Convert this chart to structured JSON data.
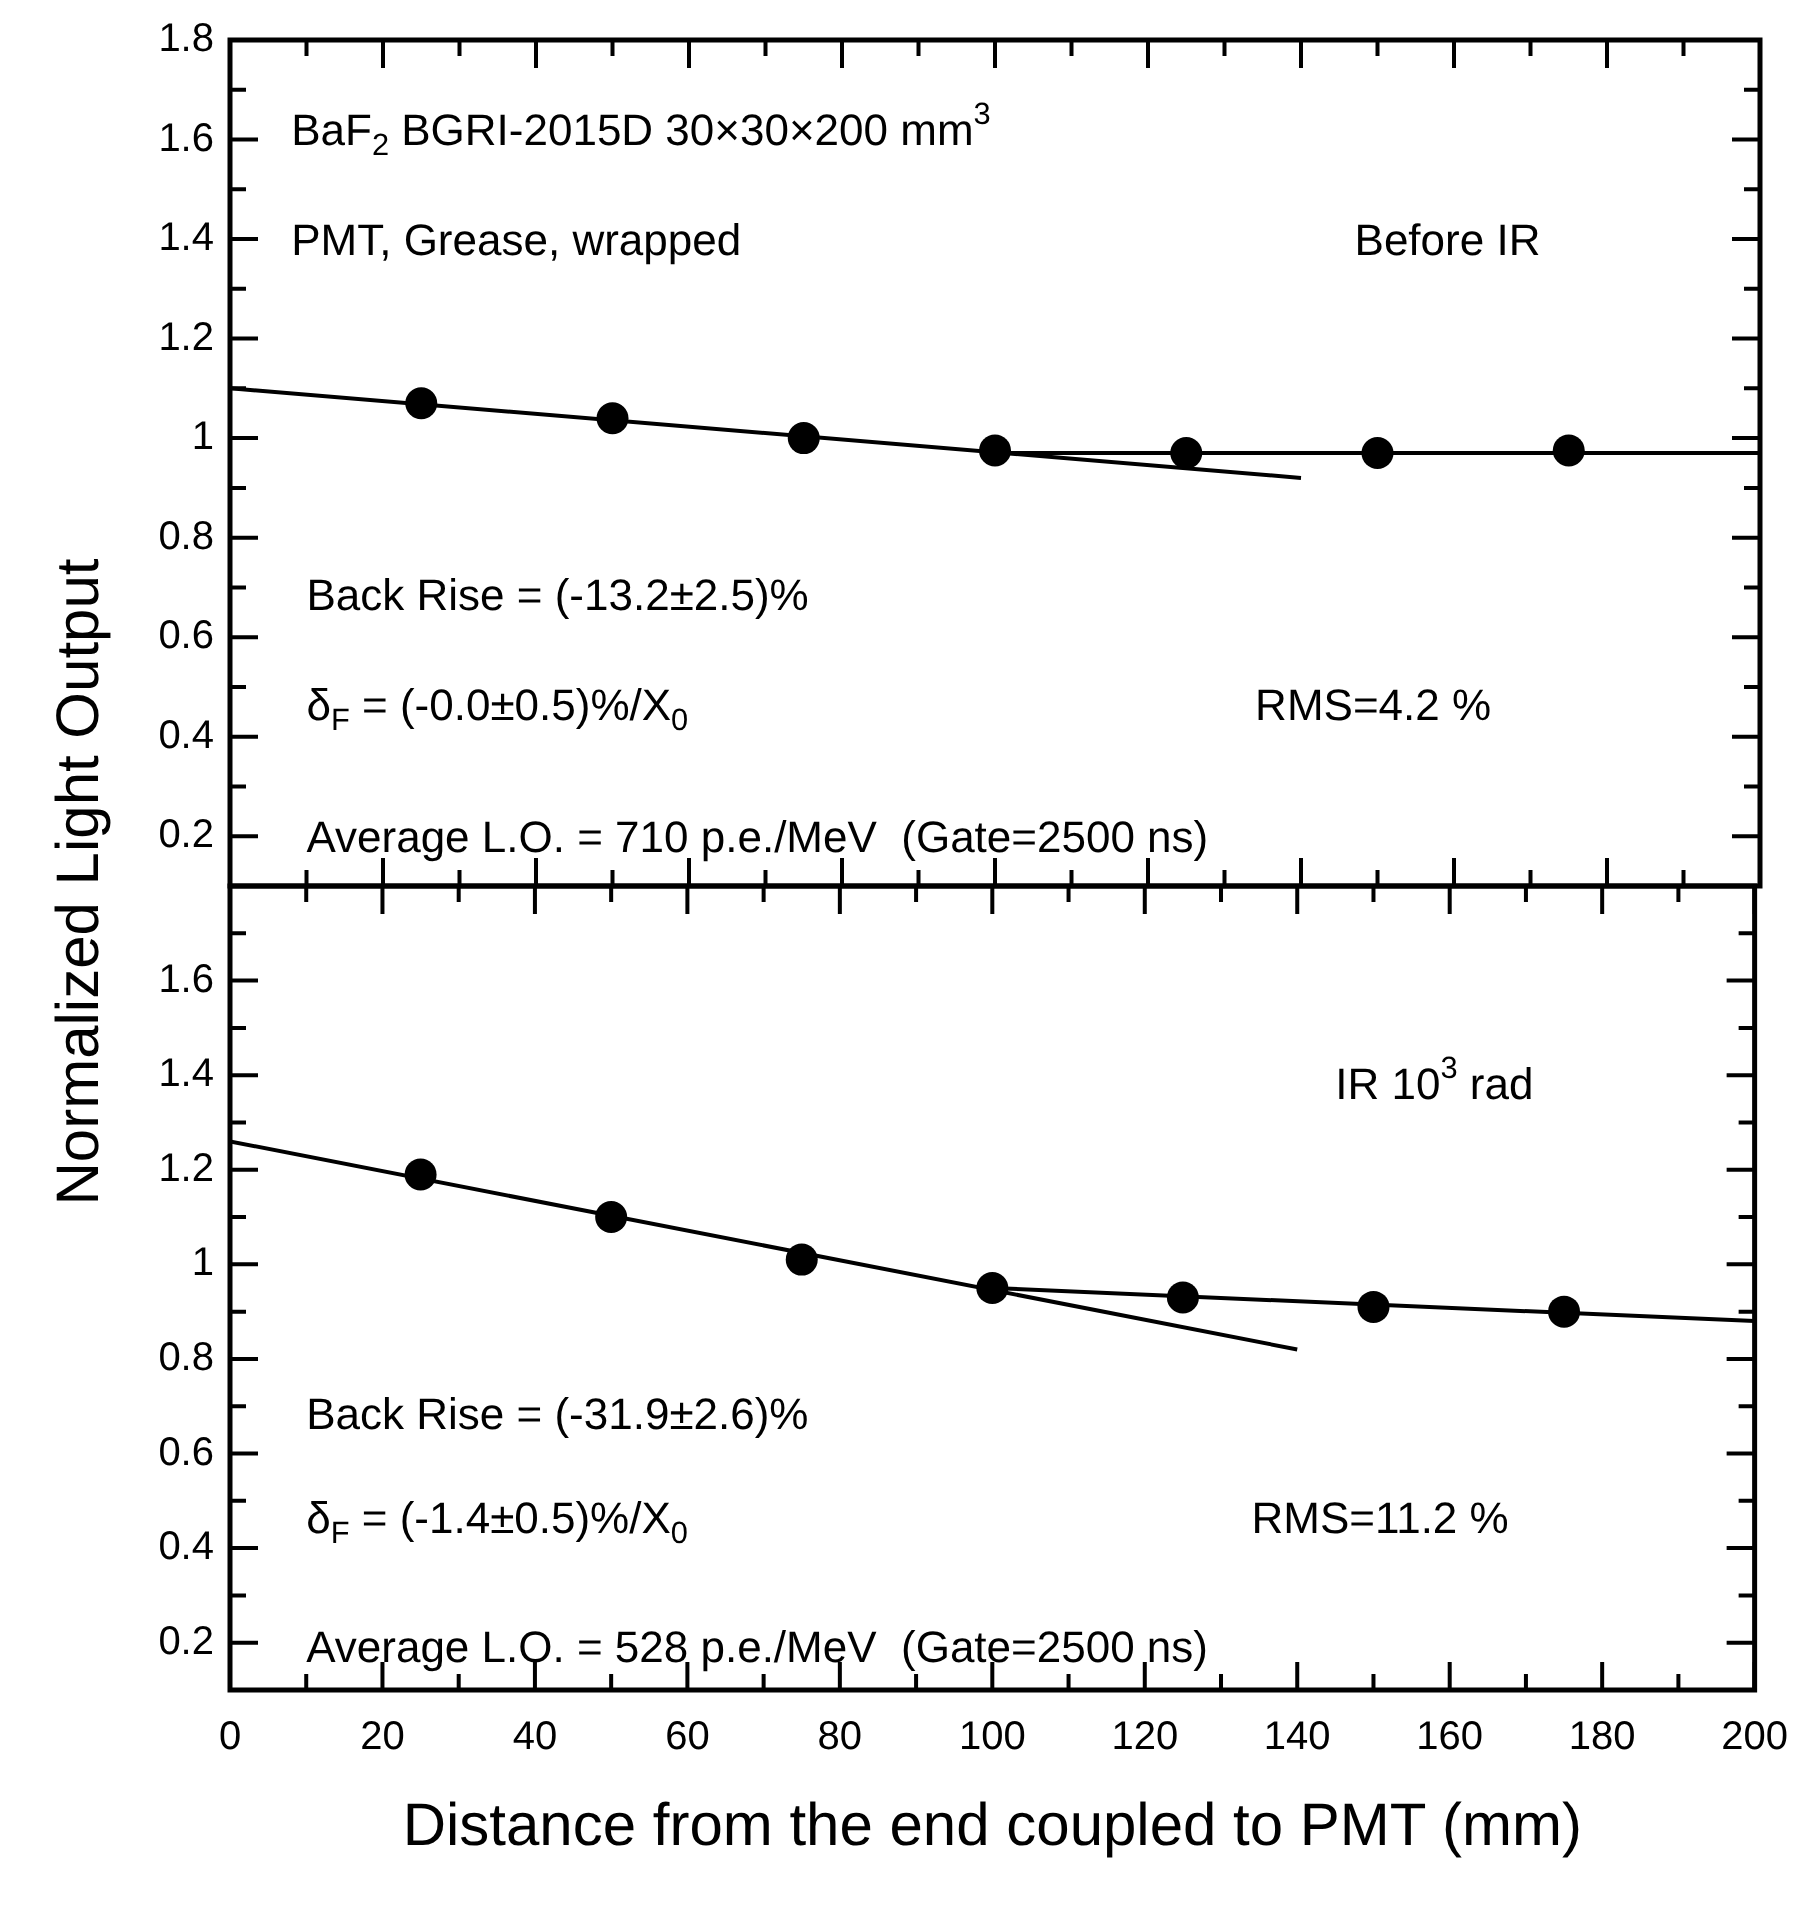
{
  "chart_data": [
    {
      "type": "scatter",
      "ylabel": "Normalized Light Output",
      "xlim": [
        0,
        200
      ],
      "xticks": [
        0,
        20,
        40,
        60,
        80,
        100,
        120,
        140,
        160,
        180,
        200
      ],
      "ylim": [
        0.1,
        1.8
      ],
      "yticks": [
        0.2,
        0.4,
        0.6,
        0.8,
        1,
        1.2,
        1.4,
        1.6,
        1.8
      ],
      "tick_labels": "y",
      "grid": false,
      "legend": false,
      "series": [
        {
          "marker": "circle",
          "color": "#000000",
          "x": [
            25,
            50,
            75,
            100,
            125,
            150,
            175
          ],
          "values": [
            1.07,
            1.04,
            1.0,
            0.975,
            0.97,
            0.97,
            0.975
          ]
        },
        {
          "type": "line",
          "line_style": "solid",
          "color": "#000000",
          "x": [
            0,
            140
          ],
          "values": [
            1.1,
            0.92
          ]
        },
        {
          "type": "line",
          "line_style": "solid",
          "color": "#000000",
          "x": [
            100,
            200
          ],
          "values": [
            0.97,
            0.97
          ]
        }
      ],
      "annotations": [
        "BaF$_{2}$ BGRI-2015D 30×30×200 mm$^{3}$",
        "PMT, Grease, wrapped",
        "Before IR",
        "Back Rise = (-13.2±2.5)%",
        "δ$_{F}$ = (-0.0±0.5)%/X$_{0}$",
        "RMS=4.2 %",
        "Average L.O. = 710 p.e./MeV  (Gate=2500 ns)"
      ]
    },
    {
      "type": "scatter",
      "xlabel": "Distance from the end coupled to PMT (mm)",
      "xlim": [
        0,
        200
      ],
      "xticks": [
        0,
        20,
        40,
        60,
        80,
        100,
        120,
        140,
        160,
        180,
        200
      ],
      "ylim": [
        0.1,
        1.8
      ],
      "yticks": [
        0.2,
        0.4,
        0.6,
        0.8,
        1,
        1.2,
        1.4,
        1.6
      ],
      "grid": false,
      "legend": false,
      "series": [
        {
          "marker": "circle",
          "color": "#000000",
          "x": [
            25,
            50,
            75,
            100,
            125,
            150,
            175
          ],
          "values": [
            1.19,
            1.1,
            1.01,
            0.95,
            0.93,
            0.91,
            0.9
          ]
        },
        {
          "type": "line",
          "line_style": "solid",
          "color": "#000000",
          "x": [
            0,
            140
          ],
          "values": [
            1.26,
            0.82
          ]
        },
        {
          "type": "line",
          "line_style": "solid",
          "color": "#000000",
          "x": [
            100,
            200
          ],
          "values": [
            0.95,
            0.88
          ]
        }
      ],
      "annotations": [
        "IR 10$^{3}$ rad",
        "Back Rise = (-31.9±2.6)%",
        "δ$_{F}$ = (-1.4±0.5)%/X$_{0}$",
        "RMS=11.2 %",
        "Average L.O. = 528 p.e./MeV  (Gate=2500 ns)"
      ]
    }
  ]
}
